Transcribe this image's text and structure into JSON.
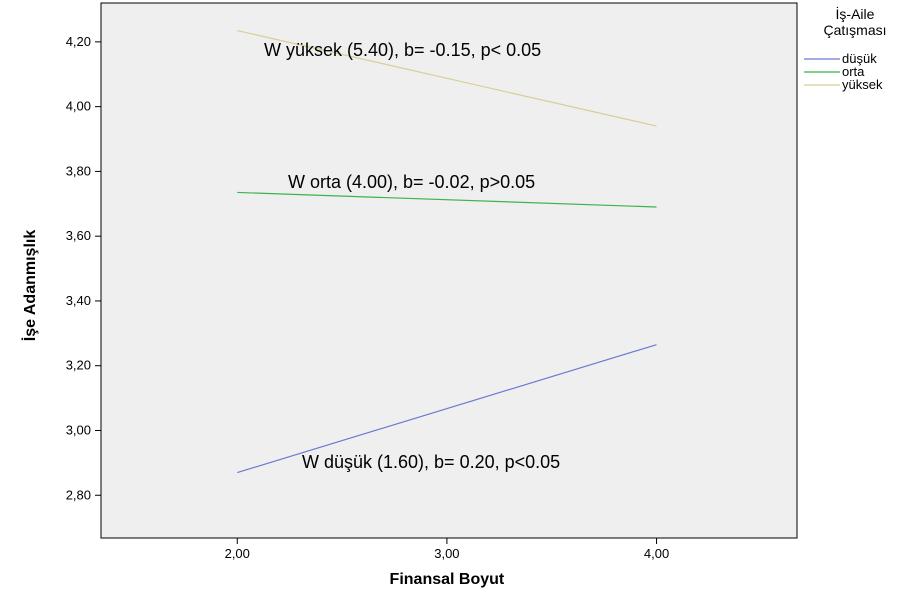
{
  "chart_data": {
    "type": "line",
    "xlabel": "Finansal Boyut",
    "ylabel": "İşe Adanmışlık",
    "xlim": [
      1.35,
      4.67
    ],
    "ylim": [
      2.668,
      4.32
    ],
    "x_ticks": [
      "2,00",
      "3,00",
      "4,00"
    ],
    "y_ticks": [
      "2,80",
      "3,00",
      "3,20",
      "3,40",
      "3,60",
      "3,80",
      "4,00",
      "4,20"
    ],
    "x_tick_values": [
      2.0,
      3.0,
      4.0
    ],
    "y_tick_values": [
      2.8,
      3.0,
      3.2,
      3.4,
      3.6,
      3.8,
      4.0,
      4.2
    ],
    "legend": {
      "title_lines": [
        "İş-Aile",
        "Çatışması"
      ],
      "placement": "right"
    },
    "series": [
      {
        "name": "düşük",
        "color": "#6b7bd1",
        "x": [
          2.0,
          4.0
        ],
        "y": [
          2.87,
          3.265
        ]
      },
      {
        "name": "orta",
        "color": "#3cb44b",
        "x": [
          2.0,
          4.0
        ],
        "y": [
          3.735,
          3.69
        ]
      },
      {
        "name": "yüksek",
        "color": "#d6cf95",
        "x": [
          2.0,
          4.0
        ],
        "y": [
          4.235,
          3.94
        ]
      }
    ],
    "annotations": [
      {
        "text": "W yüksek (5.40), b= -0.15, p< 0.05"
      },
      {
        "text": "W orta (4.00), b= -0.02, p>0.05"
      },
      {
        "text": "W düşük (1.60), b= 0.20, p<0.05"
      }
    ],
    "grid": false,
    "plot_background": "#efefef"
  }
}
